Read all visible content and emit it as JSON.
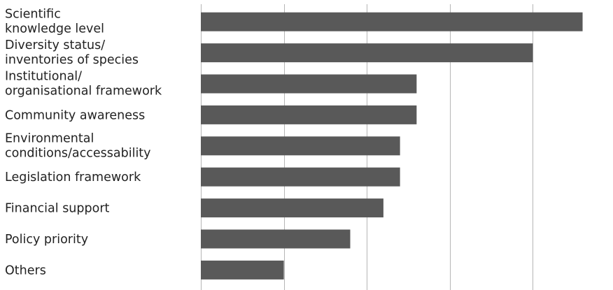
{
  "chart_data": {
    "type": "bar",
    "orientation": "horizontal",
    "categories": [
      [
        "Scientific",
        "knowledge level"
      ],
      [
        "Diversity status/",
        "inventories of species"
      ],
      [
        "Institutional/",
        "organisational framework"
      ],
      [
        "Community awareness"
      ],
      [
        "Environmental",
        "conditions/accessability"
      ],
      [
        "Legislation framework"
      ],
      [
        "Financial support"
      ],
      [
        "Policy priority"
      ],
      [
        "Others"
      ]
    ],
    "values": [
      23,
      20,
      13,
      13,
      12,
      12,
      11,
      9,
      5
    ],
    "xlim": [
      0,
      25
    ],
    "grid": true,
    "bar_color": "#595959",
    "grid_color": "#b5b5b5",
    "title": "",
    "xlabel": "",
    "ylabel": ""
  }
}
